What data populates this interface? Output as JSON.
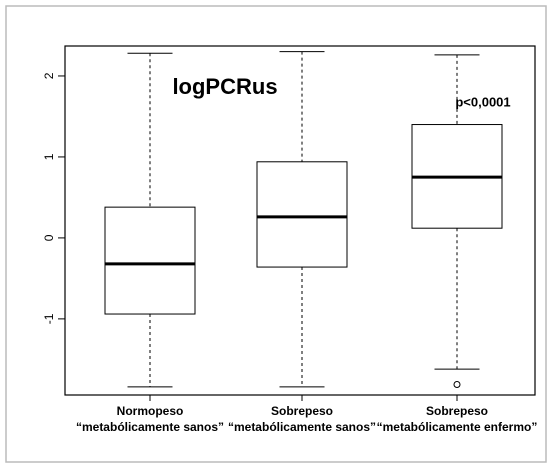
{
  "chart_data": {
    "type": "box",
    "title": "logPCRus",
    "annotation": "p<0,0001",
    "categories": [
      [
        "Normopeso",
        "“metabólicamente sanos”"
      ],
      [
        "Sobrepeso",
        "“metabólicamente sanos”"
      ],
      [
        "Sobrepeso",
        "“metabólicamente enfermo”"
      ]
    ],
    "boxes": [
      {
        "min": -1.84,
        "q1": -0.94,
        "median": -0.32,
        "q3": 0.38,
        "max": 2.28,
        "outliers": []
      },
      {
        "min": -1.84,
        "q1": -0.36,
        "median": 0.26,
        "q3": 0.94,
        "max": 2.3,
        "outliers": []
      },
      {
        "min": -1.62,
        "q1": 0.12,
        "median": 0.75,
        "q3": 1.4,
        "max": 2.26,
        "outliers": [
          -1.81
        ]
      }
    ],
    "color": "#000000",
    "ylim": [
      -1.94,
      2.37
    ],
    "yticks": [
      -1,
      0,
      1,
      2
    ]
  }
}
